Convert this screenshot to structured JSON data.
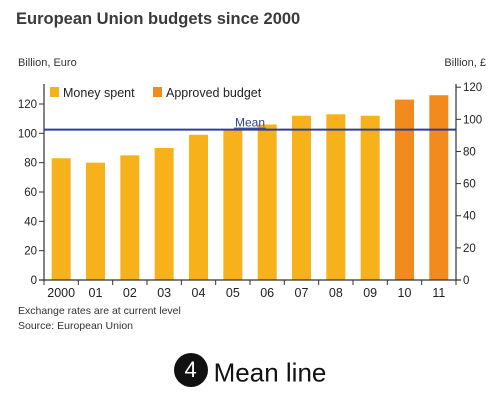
{
  "title": "European Union budgets since 2000",
  "left_unit": "Billion, Euro",
  "right_unit": "Billion, £",
  "note1": "Exchange rates are at current level",
  "note2": "Source: European Union",
  "caption": {
    "number": "4",
    "text": "Mean line"
  },
  "colors": {
    "spent": "#F7B21B",
    "approved": "#F28A1E",
    "mean": "#2D3F9A",
    "axis": "#333333"
  },
  "chart_data": {
    "type": "bar",
    "title": "European Union budgets since 2000",
    "categories": [
      "2000",
      "01",
      "02",
      "03",
      "04",
      "05",
      "06",
      "07",
      "08",
      "09",
      "10",
      "11"
    ],
    "series": [
      {
        "name": "Money spent",
        "values": [
          83,
          80,
          85,
          90,
          99,
          103,
          106,
          112,
          113,
          112,
          null,
          null
        ]
      },
      {
        "name": "Approved budget",
        "values": [
          null,
          null,
          null,
          null,
          null,
          null,
          null,
          null,
          null,
          null,
          123,
          126
        ]
      }
    ],
    "left_axis": {
      "label": "Billion, Euro",
      "ticks": [
        0,
        20,
        40,
        60,
        80,
        100,
        120
      ],
      "ylim": [
        0,
        120
      ]
    },
    "right_axis": {
      "label": "Billion, £",
      "ticks": [
        0,
        20,
        40,
        60,
        80,
        100,
        120
      ],
      "ylim": [
        0,
        122
      ]
    },
    "mean": {
      "label": "Mean",
      "value": 102.5
    },
    "legend": {
      "placement": "top-left"
    },
    "grid": false
  }
}
